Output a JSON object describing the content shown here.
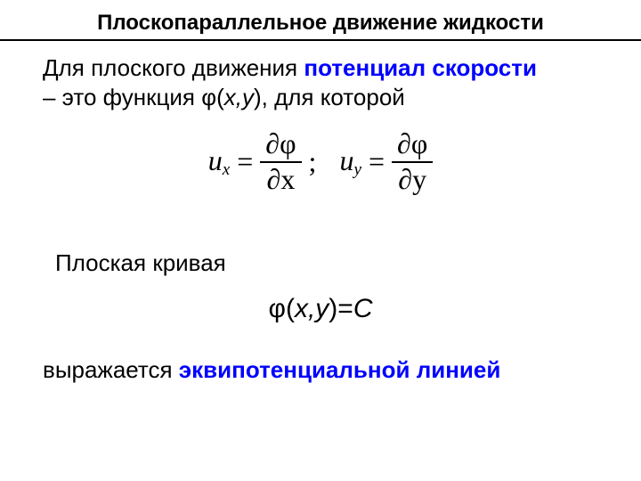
{
  "title": "Плоскопараллельное движение жидкости",
  "para1": {
    "pre": "Для плоского движения ",
    "blue": "потенциал скорости",
    "post1": " – это функция φ(",
    "vars": "x,y",
    "post2": "), для которой"
  },
  "eq1": {
    "ux_lhs": "u",
    "ux_sub": "x",
    "eq": "=",
    "num": "∂φ",
    "den_x": "∂x",
    "semi": ";",
    "uy_lhs": "u",
    "uy_sub": "y",
    "den_y": "∂y"
  },
  "para2": "Плоская кривая",
  "eq2": {
    "phi": "φ(",
    "vars": "x,y",
    "mid": ")=",
    "C": "C"
  },
  "para3": {
    "pre": "выражается ",
    "blue": "эквипотенциальной линией"
  },
  "colors": {
    "blue": "#0000ff",
    "text": "#000000",
    "bg": "#ffffff"
  }
}
